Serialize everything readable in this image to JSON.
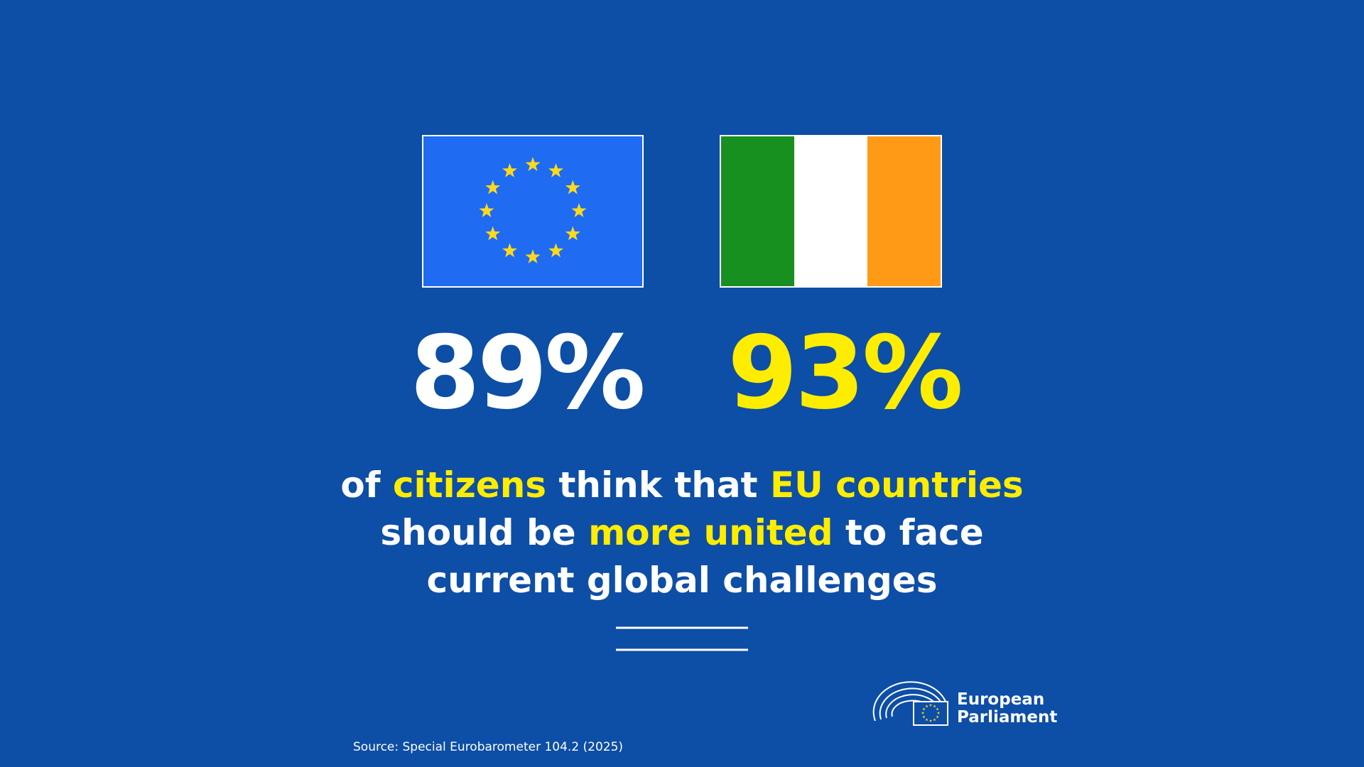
{
  "stats": [
    {
      "value_label": "89%",
      "color": "#ffffff"
    },
    {
      "value_label": "93%",
      "color": "#ffed00"
    }
  ],
  "headline": [
    [
      {
        "text": "of",
        "highlight": false
      },
      {
        "text": "citizens",
        "highlight": true
      },
      {
        "text": "think that",
        "highlight": false
      },
      {
        "text": "EU countries",
        "highlight": true
      }
    ],
    [
      {
        "text": "should be",
        "highlight": false
      },
      {
        "text": "more united",
        "highlight": true
      },
      {
        "text": "to face",
        "highlight": false
      }
    ],
    [
      {
        "text": "current global challenges",
        "highlight": false
      }
    ]
  ],
  "logo": {
    "line1": "European",
    "line2": "Parliament"
  },
  "source": "Source: Special Eurobarometer 104.2 (2025)"
}
